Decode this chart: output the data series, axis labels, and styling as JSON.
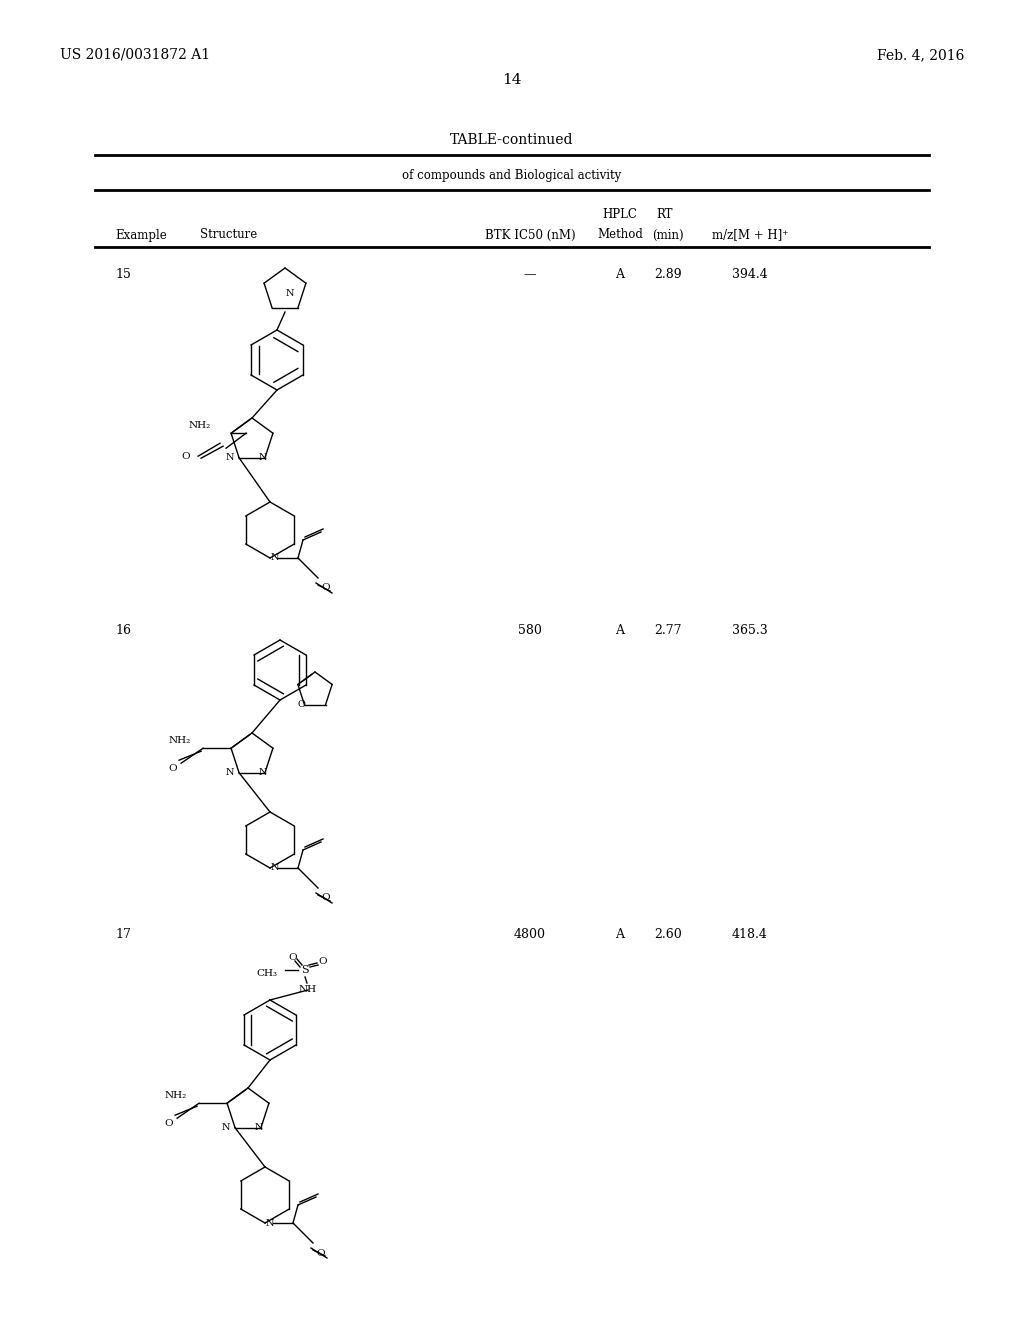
{
  "page_num": "14",
  "patent_left": "US 2016/0031872 A1",
  "patent_right": "Feb. 4, 2016",
  "table_title": "TABLE-continued",
  "table_subtitle": "of compounds and Biological activity",
  "col_headers_top": [
    "HPLC",
    "RT"
  ],
  "col_headers_bot": [
    "Example",
    "Structure",
    "BTK IC50 (nM)",
    "Method",
    "(min)",
    "m/z[M + H]⁺"
  ],
  "rows": [
    {
      "example": "15",
      "btk": "—",
      "method": "A",
      "rt": "2.89",
      "mz": "394.4"
    },
    {
      "example": "16",
      "btk": "580",
      "method": "A",
      "rt": "2.77",
      "mz": "365.3"
    },
    {
      "example": "17",
      "btk": "4800",
      "method": "A",
      "rt": "2.60",
      "mz": "418.4"
    }
  ],
  "bg_color": "#ffffff",
  "text_color": "#000000",
  "line_color": "#000000",
  "font_size_header": 9,
  "font_size_body": 9,
  "font_size_patent": 10,
  "font_size_page": 11,
  "font_size_table_title": 10
}
